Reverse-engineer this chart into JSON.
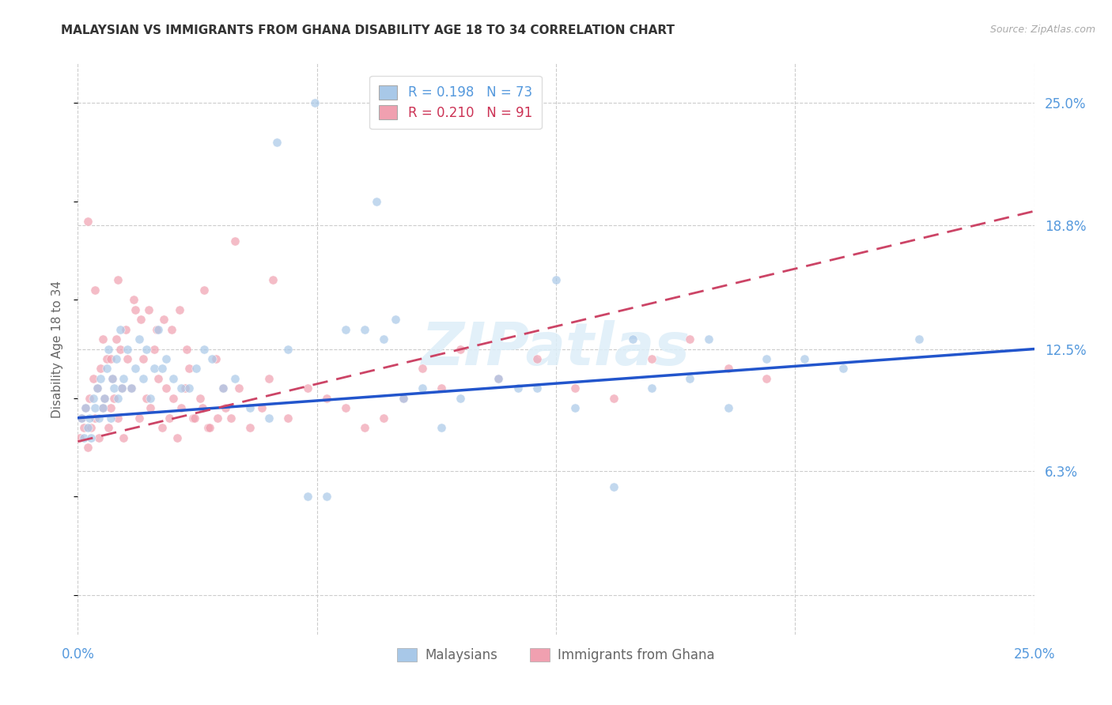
{
  "title": "MALAYSIAN VS IMMIGRANTS FROM GHANA DISABILITY AGE 18 TO 34 CORRELATION CHART",
  "source": "Source: ZipAtlas.com",
  "ylabel": "Disability Age 18 to 34",
  "color_blue": "#a8c8e8",
  "color_pink": "#f0a0b0",
  "color_line_blue": "#2255cc",
  "color_line_pink": "#cc4466",
  "color_axis_label": "#5599dd",
  "legend_label1": "Malaysians",
  "legend_label2": "Immigrants from Ghana",
  "r1": 0.198,
  "n1": 73,
  "r2": 0.21,
  "n2": 91,
  "xlim": [
    0.0,
    25.0
  ],
  "ylim": [
    -2.0,
    27.0
  ],
  "y_ticks_right": [
    6.3,
    12.5,
    18.8,
    25.0
  ],
  "watermark": "ZIPatlas",
  "reg_blue_x0": 9.0,
  "reg_blue_x25": 12.5,
  "reg_pink_x0": 7.8,
  "reg_pink_x25": 19.5,
  "malaysians_x": [
    0.1,
    0.15,
    0.2,
    0.25,
    0.3,
    0.35,
    0.4,
    0.45,
    0.5,
    0.55,
    0.6,
    0.65,
    0.7,
    0.75,
    0.8,
    0.85,
    0.9,
    0.95,
    1.0,
    1.05,
    1.1,
    1.15,
    1.2,
    1.3,
    1.4,
    1.5,
    1.6,
    1.7,
    1.8,
    1.9,
    2.0,
    2.1,
    2.2,
    2.3,
    2.5,
    2.7,
    2.9,
    3.1,
    3.3,
    3.5,
    3.8,
    4.1,
    4.5,
    5.0,
    5.5,
    6.0,
    6.5,
    7.0,
    7.5,
    8.0,
    8.5,
    9.0,
    10.0,
    11.0,
    12.0,
    13.0,
    14.0,
    15.0,
    16.0,
    17.0,
    18.0,
    19.0,
    20.0,
    22.0,
    5.2,
    6.2,
    7.8,
    8.3,
    9.5,
    11.5,
    12.5,
    14.5,
    16.5
  ],
  "malaysians_y": [
    9.0,
    8.0,
    9.5,
    8.5,
    9.0,
    8.0,
    10.0,
    9.5,
    10.5,
    9.0,
    11.0,
    9.5,
    10.0,
    11.5,
    12.5,
    9.0,
    11.0,
    10.5,
    12.0,
    10.0,
    13.5,
    10.5,
    11.0,
    12.5,
    10.5,
    11.5,
    13.0,
    11.0,
    12.5,
    10.0,
    11.5,
    13.5,
    11.5,
    12.0,
    11.0,
    10.5,
    10.5,
    11.5,
    12.5,
    12.0,
    10.5,
    11.0,
    9.5,
    9.0,
    12.5,
    5.0,
    5.0,
    13.5,
    13.5,
    13.0,
    10.0,
    10.5,
    10.0,
    11.0,
    10.5,
    9.5,
    5.5,
    10.5,
    11.0,
    9.5,
    12.0,
    12.0,
    11.5,
    13.0,
    23.0,
    25.0,
    20.0,
    14.0,
    8.5,
    10.5,
    16.0,
    13.0,
    13.0
  ],
  "ghana_x": [
    0.05,
    0.1,
    0.15,
    0.2,
    0.25,
    0.3,
    0.35,
    0.4,
    0.45,
    0.5,
    0.55,
    0.6,
    0.65,
    0.7,
    0.75,
    0.8,
    0.85,
    0.9,
    0.95,
    1.0,
    1.05,
    1.1,
    1.15,
    1.2,
    1.3,
    1.4,
    1.5,
    1.6,
    1.7,
    1.8,
    1.9,
    2.0,
    2.1,
    2.2,
    2.3,
    2.4,
    2.5,
    2.6,
    2.7,
    2.8,
    2.9,
    3.0,
    3.2,
    3.4,
    3.6,
    3.8,
    4.0,
    4.2,
    4.5,
    4.8,
    5.0,
    5.5,
    6.0,
    6.5,
    7.0,
    7.5,
    8.0,
    8.5,
    9.0,
    9.5,
    10.0,
    11.0,
    12.0,
    13.0,
    14.0,
    15.0,
    16.0,
    17.0,
    18.0,
    3.3,
    4.1,
    5.1,
    0.25,
    0.45,
    0.65,
    0.85,
    1.05,
    1.25,
    1.45,
    1.65,
    1.85,
    2.05,
    2.25,
    2.45,
    2.65,
    2.85,
    3.05,
    3.25,
    3.45,
    3.65,
    3.85
  ],
  "ghana_y": [
    8.0,
    9.0,
    8.5,
    9.5,
    7.5,
    10.0,
    8.5,
    11.0,
    9.0,
    10.5,
    8.0,
    11.5,
    9.5,
    10.0,
    12.0,
    8.5,
    9.5,
    11.0,
    10.0,
    13.0,
    9.0,
    12.5,
    10.5,
    8.0,
    12.0,
    10.5,
    14.5,
    9.0,
    12.0,
    10.0,
    9.5,
    12.5,
    11.0,
    8.5,
    10.5,
    9.0,
    10.0,
    8.0,
    9.5,
    10.5,
    11.5,
    9.0,
    10.0,
    8.5,
    12.0,
    10.5,
    9.0,
    10.5,
    8.5,
    9.5,
    11.0,
    9.0,
    10.5,
    10.0,
    9.5,
    8.5,
    9.0,
    10.0,
    11.5,
    10.5,
    12.5,
    11.0,
    12.0,
    10.5,
    10.0,
    12.0,
    13.0,
    11.5,
    11.0,
    15.5,
    18.0,
    16.0,
    19.0,
    15.5,
    13.0,
    12.0,
    16.0,
    13.5,
    15.0,
    14.0,
    14.5,
    13.5,
    14.0,
    13.5,
    14.5,
    12.5,
    9.0,
    9.5,
    8.5,
    9.0,
    9.5
  ]
}
